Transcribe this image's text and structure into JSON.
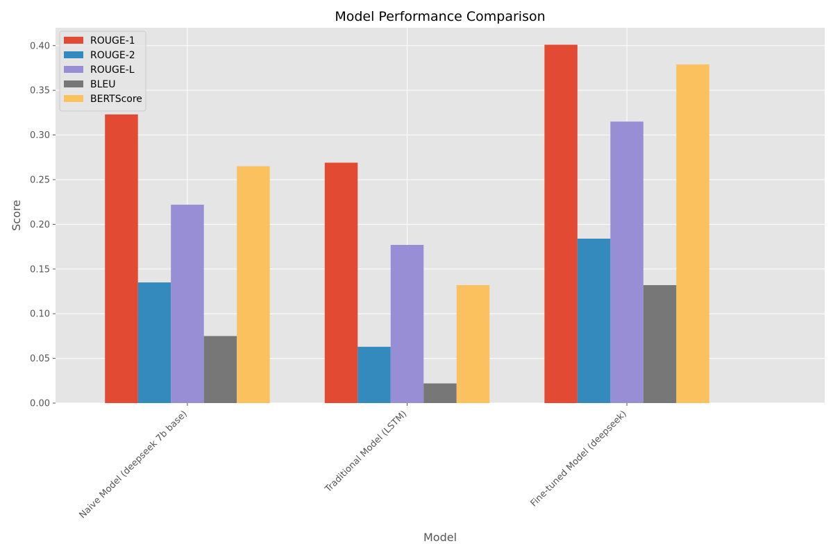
{
  "chart_data": {
    "type": "bar",
    "title": "Model Performance Comparison",
    "xlabel": "Model",
    "ylabel": "Score",
    "categories": [
      "Naive Model (deepseek 7b base)",
      "Traditional Model (LSTM)",
      "Fine-tuned Model (deepseek)"
    ],
    "series": [
      {
        "name": "ROUGE-1",
        "color": "#E24A33",
        "values": [
          0.323,
          0.269,
          0.401
        ]
      },
      {
        "name": "ROUGE-2",
        "color": "#348ABD",
        "values": [
          0.135,
          0.063,
          0.184
        ]
      },
      {
        "name": "ROUGE-L",
        "color": "#988ED5",
        "values": [
          0.222,
          0.177,
          0.315
        ]
      },
      {
        "name": "BLEU",
        "color": "#777777",
        "values": [
          0.075,
          0.022,
          0.132
        ]
      },
      {
        "name": "BERTScore",
        "color": "#FBC15E",
        "values": [
          0.265,
          0.132,
          0.379
        ]
      }
    ],
    "ylim": [
      0,
      0.42
    ],
    "yticks": [
      "0.00",
      "0.05",
      "0.10",
      "0.15",
      "0.20",
      "0.25",
      "0.30",
      "0.35",
      "0.40"
    ],
    "grid": true,
    "legend_position": "top-left",
    "background_color": "#E5E5E5",
    "grid_color": "#FFFFFF"
  }
}
